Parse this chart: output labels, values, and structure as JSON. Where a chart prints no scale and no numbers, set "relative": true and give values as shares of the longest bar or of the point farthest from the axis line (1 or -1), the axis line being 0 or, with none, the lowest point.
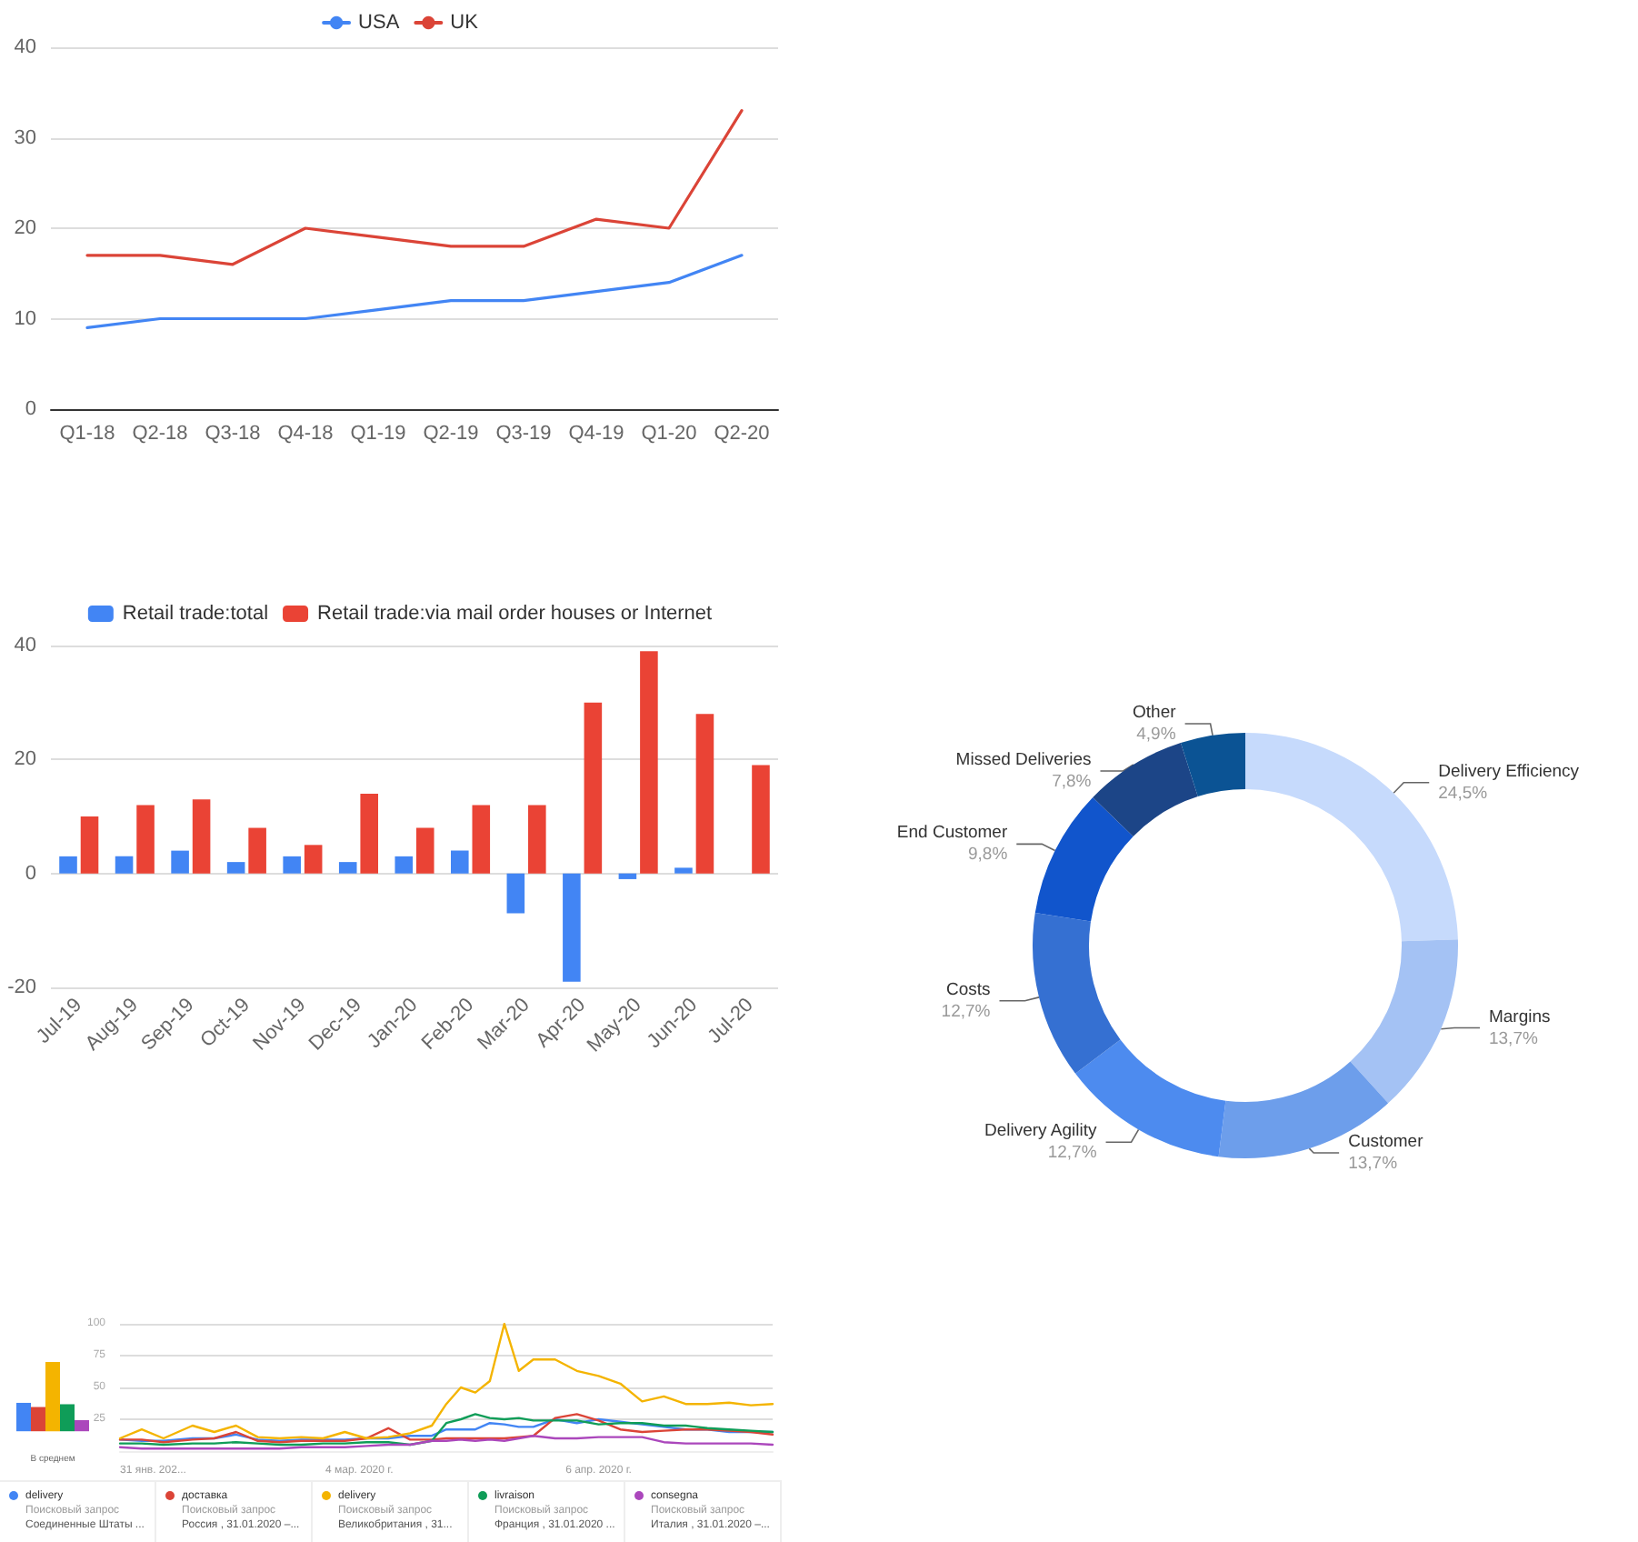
{
  "chart_data": [
    {
      "type": "line",
      "categories": [
        "Q1-18",
        "Q2-18",
        "Q3-18",
        "Q4-18",
        "Q1-19",
        "Q2-19",
        "Q3-19",
        "Q4-19",
        "Q1-20",
        "Q2-20"
      ],
      "series": [
        {
          "name": "USA",
          "color": "#4285f4",
          "values": [
            9,
            10,
            10,
            10,
            11,
            12,
            12,
            13,
            14,
            17
          ]
        },
        {
          "name": "UK",
          "color": "#db4437",
          "values": [
            17,
            17,
            16,
            20,
            19,
            18,
            18,
            21,
            20,
            33
          ]
        }
      ],
      "ylim": [
        0,
        40
      ],
      "yticks": [
        0,
        10,
        20,
        30,
        40
      ],
      "grid": "y",
      "legend": "top",
      "marker": "none",
      "line_style": "solid"
    },
    {
      "type": "bar",
      "categories": [
        "Jul-19",
        "Aug-19",
        "Sep-19",
        "Oct-19",
        "Nov-19",
        "Dec-19",
        "Jan-20",
        "Feb-20",
        "Mar-20",
        "Apr-20",
        "May-20",
        "Jun-20",
        "Jul-20"
      ],
      "series": [
        {
          "name": "Retail trade:total",
          "color": "#4285f4",
          "values": [
            3,
            3,
            4,
            2,
            3,
            2,
            3,
            4,
            -7,
            -19,
            -1,
            1,
            null
          ]
        },
        {
          "name": "Retail trade:via mail order houses or Internet",
          "color": "#ea4335",
          "values": [
            10,
            12,
            13,
            8,
            5,
            14,
            8,
            12,
            12,
            30,
            39,
            28,
            19
          ]
        }
      ],
      "ylim": [
        -20,
        40
      ],
      "yticks": [
        -20,
        0,
        20,
        40
      ],
      "grid": "y",
      "legend": "top"
    },
    {
      "type": "donut",
      "categories": [
        "Delivery Efficiency",
        "Margins",
        "Customer",
        "Delivery Agility",
        "Costs",
        "End Customer",
        "Missed Deliveries",
        "Other"
      ],
      "values": [
        24.5,
        13.7,
        13.7,
        12.7,
        12.7,
        9.8,
        7.8,
        4.9
      ],
      "value_labels": [
        "24,5%",
        "13,7%",
        "13,7%",
        "12,7%",
        "12,7%",
        "9,8%",
        "7,8%",
        "4,9%"
      ],
      "colors": [
        "#c6dafc",
        "#a4c2f4",
        "#6d9eeb",
        "#4d8bef",
        "#3570d2",
        "#1155cc",
        "#1c4587",
        "#0b5394"
      ]
    },
    {
      "type": "line",
      "x": [
        "2020-01-31",
        "2020-02-03",
        "2020-02-06",
        "2020-02-10",
        "2020-02-13",
        "2020-02-16",
        "2020-02-19",
        "2020-02-22",
        "2020-02-25",
        "2020-02-28",
        "2020-03-02",
        "2020-03-05",
        "2020-03-08",
        "2020-03-11",
        "2020-03-14",
        "2020-03-16",
        "2020-03-18",
        "2020-03-20",
        "2020-03-22",
        "2020-03-24",
        "2020-03-26",
        "2020-03-28",
        "2020-03-31",
        "2020-04-03",
        "2020-04-06",
        "2020-04-09",
        "2020-04-12",
        "2020-04-15",
        "2020-04-18",
        "2020-04-21",
        "2020-04-24",
        "2020-04-27",
        "2020-04-30"
      ],
      "series": [
        {
          "name": "delivery",
          "color": "#4285f4",
          "values": [
            9,
            8,
            8,
            10,
            10,
            13,
            9,
            8,
            9,
            9,
            9,
            10,
            10,
            12,
            12,
            17,
            17,
            17,
            22,
            21,
            19,
            19,
            25,
            22,
            25,
            23,
            21,
            19,
            17,
            17,
            15,
            15,
            15
          ]
        },
        {
          "name": "доставка",
          "color": "#db4437",
          "values": [
            9,
            9,
            7,
            9,
            10,
            15,
            8,
            7,
            8,
            8,
            8,
            10,
            18,
            9,
            9,
            10,
            10,
            10,
            10,
            10,
            11,
            12,
            26,
            29,
            24,
            17,
            15,
            16,
            17,
            17,
            16,
            15,
            13
          ]
        },
        {
          "name": "delivery",
          "color": "#f4b400",
          "values": [
            10,
            17,
            10,
            20,
            15,
            20,
            11,
            10,
            11,
            10,
            15,
            10,
            11,
            14,
            20,
            37,
            50,
            46,
            55,
            100,
            63,
            72,
            72,
            63,
            59,
            53,
            39,
            43,
            37,
            37,
            38,
            36,
            37
          ]
        },
        {
          "name": "livraison",
          "color": "#0f9d58",
          "values": [
            6,
            6,
            5,
            6,
            6,
            7,
            6,
            5,
            5,
            6,
            6,
            7,
            7,
            5,
            8,
            22,
            25,
            29,
            26,
            25,
            26,
            24,
            24,
            24,
            21,
            22,
            22,
            20,
            20,
            18,
            17,
            16,
            15
          ]
        },
        {
          "name": "consegna",
          "color": "#ab47bc",
          "values": [
            3,
            2,
            2,
            2,
            2,
            2,
            2,
            2,
            3,
            3,
            3,
            4,
            5,
            5,
            8,
            8,
            9,
            8,
            9,
            8,
            10,
            12,
            10,
            10,
            11,
            11,
            11,
            7,
            6,
            6,
            6,
            6,
            5
          ]
        }
      ],
      "xlim": [
        "2020-01-31",
        "2020-04-30"
      ],
      "xticks": [
        {
          "value": "2020-01-31",
          "label": "31 янв. 202..."
        },
        {
          "value": "2020-03-04",
          "label": "4 мар. 2020 г."
        },
        {
          "value": "2020-04-06",
          "label": "6 апр. 2020 г."
        }
      ],
      "ylim": [
        0,
        100
      ],
      "yticks": [
        25,
        50,
        75,
        100
      ],
      "grid": "y",
      "legend": "bottom",
      "marker": "none",
      "annotations": [
        "Поисковый запрос",
        "Соединенные Штаты ...",
        "Поисковый запрос",
        "Россия , 31.01.2020 –...",
        "Поисковый запрос",
        "Великобритания , 31...",
        "Поисковый запрос",
        "Франция , 31.01.2020 ...",
        "Поисковый запрос",
        "Италия , 31.01.2020 –..."
      ]
    },
    {
      "type": "bar",
      "relative": true,
      "categories": [
        null,
        null,
        null,
        null,
        null
      ],
      "values": [
        0.41,
        0.35,
        1,
        0.39,
        0.16
      ],
      "colors": [
        "#4285f4",
        "#db4437",
        "#f4b400",
        "#0f9d58",
        "#ab47bc"
      ],
      "xlabel": "В среднем"
    }
  ]
}
